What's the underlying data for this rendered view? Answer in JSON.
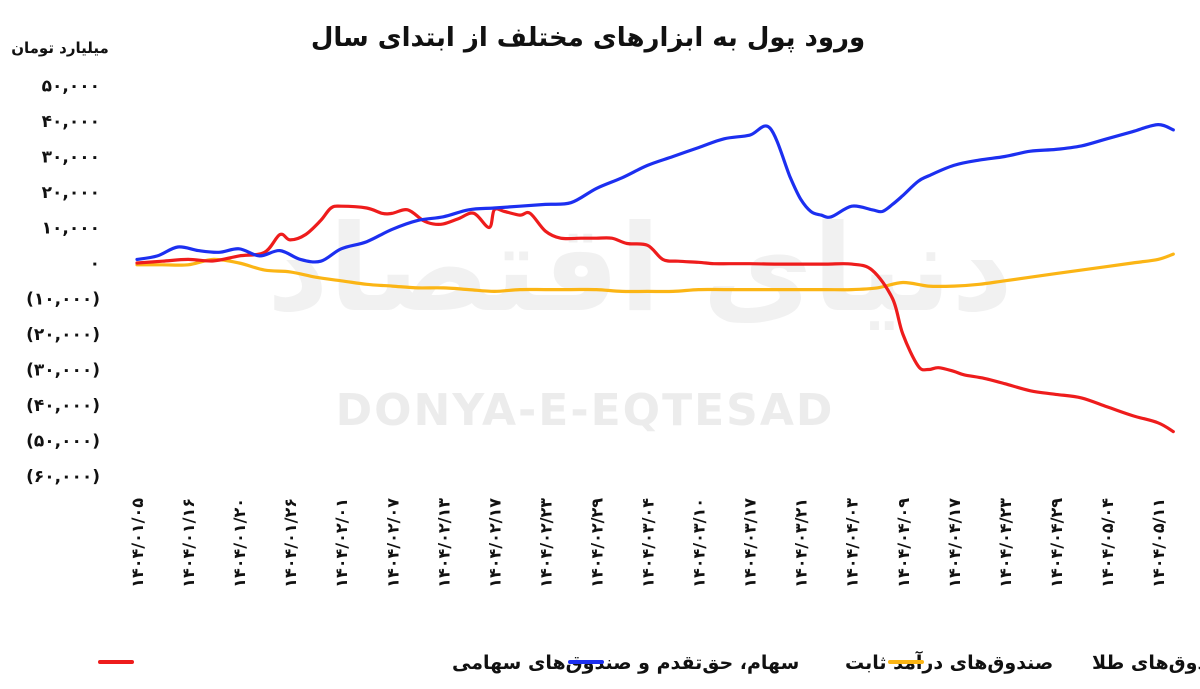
{
  "watermark": {
    "latin": "DONYA-E-EQTESAD",
    "farsi": "دنیای اقتصاد"
  },
  "chart_data": {
    "type": "line",
    "title": "ورود پول به ابزارهای مختلف از ابتدای سال",
    "ylabel": "میلیارد تومان",
    "ylim": [
      -60000,
      50000
    ],
    "yticks": [
      {
        "value": 50000,
        "label": "۵۰,۰۰۰"
      },
      {
        "value": 40000,
        "label": "۴۰,۰۰۰"
      },
      {
        "value": 30000,
        "label": "۳۰,۰۰۰"
      },
      {
        "value": 20000,
        "label": "۲۰,۰۰۰"
      },
      {
        "value": 10000,
        "label": "۱۰,۰۰۰"
      },
      {
        "value": 0,
        "label": "۰"
      },
      {
        "value": -10000,
        "label": "(۱۰,۰۰۰)"
      },
      {
        "value": -20000,
        "label": "(۲۰,۰۰۰)"
      },
      {
        "value": -30000,
        "label": "(۳۰,۰۰۰)"
      },
      {
        "value": -40000,
        "label": "(۴۰,۰۰۰)"
      },
      {
        "value": -50000,
        "label": "(۵۰,۰۰۰)"
      },
      {
        "value": -60000,
        "label": "(۶۰,۰۰۰)"
      }
    ],
    "categories": [
      "۱۴۰۴/۰۱/۰۵",
      "۱۴۰۴/۰۱/۱۶",
      "۱۴۰۴/۰۱/۲۰",
      "۱۴۰۴/۰۱/۲۶",
      "۱۴۰۴/۰۲/۰۱",
      "۱۴۰۴/۰۲/۰۷",
      "۱۴۰۴/۰۲/۱۳",
      "۱۴۰۴/۰۲/۱۷",
      "۱۴۰۴/۰۲/۲۳",
      "۱۴۰۴/۰۲/۲۹",
      "۱۴۰۴/۰۳/۰۴",
      "۱۴۰۴/۰۳/۱۰",
      "۱۴۰۴/۰۳/۱۷",
      "۱۴۰۴/۰۳/۲۱",
      "۱۴۰۴/۰۴/۰۳",
      "۱۴۰۴/۰۴/۰۹",
      "۱۴۰۴/۰۴/۱۷",
      "۱۴۰۴/۰۴/۲۳",
      "۱۴۰۴/۰۴/۲۹",
      "۱۴۰۴/۰۵/۰۴",
      "۱۴۰۴/۰۵/۱۱"
    ],
    "legend_position": "bottom",
    "grid": false,
    "series": [
      {
        "name": "سهام، حق‌تقدم و صندوق‌های سهامی",
        "color": "#ee1c1c",
        "x": [
          0,
          0.5,
          1,
          1.5,
          2,
          2.5,
          2.8,
          3,
          3.3,
          3.6,
          3.8,
          4,
          4.5,
          4.8,
          5,
          5.3,
          5.6,
          5.8,
          6,
          6.3,
          6.6,
          6.9,
          7,
          7.2,
          7.5,
          7.7,
          8,
          8.3,
          8.7,
          9,
          9.3,
          9.6,
          10,
          10.3,
          10.6,
          11,
          11.3,
          11.6,
          12,
          12.5,
          13,
          13.5,
          14,
          14.4,
          14.8,
          15,
          15.3,
          15.5,
          15.7,
          16,
          16.2,
          16.6,
          17,
          17.5,
          18,
          18.5,
          19,
          19.5,
          20,
          20.3
        ],
        "values": [
          0,
          500,
          1000,
          600,
          2000,
          3000,
          8000,
          6500,
          8000,
          12000,
          15500,
          16000,
          15500,
          14000,
          14000,
          15000,
          12000,
          11000,
          11000,
          12500,
          14000,
          10000,
          15000,
          14500,
          13500,
          14000,
          9000,
          7000,
          7000,
          7000,
          7000,
          5500,
          5000,
          1000,
          500,
          200,
          -200,
          -200,
          -200,
          -300,
          -300,
          -300,
          -300,
          -2000,
          -10000,
          -20000,
          -29000,
          -30000,
          -29500,
          -30500,
          -31500,
          -32500,
          -34000,
          -36000,
          -37000,
          -38000,
          -40500,
          -43000,
          -45000,
          -47500
        ]
      },
      {
        "name": "صندوق‌های درآمد ثابت",
        "color": "#1c2ff0",
        "x": [
          0,
          0.4,
          0.8,
          1.2,
          1.6,
          2,
          2.4,
          2.8,
          3.2,
          3.6,
          4,
          4.5,
          5,
          5.5,
          6,
          6.5,
          7,
          7.5,
          8,
          8.5,
          9,
          9.5,
          10,
          10.5,
          11,
          11.5,
          12,
          12.4,
          12.8,
          13,
          13.2,
          13.4,
          13.6,
          14,
          14.4,
          14.6,
          14.8,
          15,
          15.3,
          15.5,
          16,
          16.5,
          17,
          17.5,
          18,
          18.5,
          19,
          19.5,
          20,
          20.3
        ],
        "values": [
          1000,
          2000,
          4500,
          3500,
          3000,
          4000,
          2000,
          3500,
          1000,
          500,
          4000,
          6000,
          9500,
          12000,
          13000,
          15000,
          15500,
          16000,
          16500,
          17000,
          21000,
          24000,
          27500,
          30000,
          32500,
          35000,
          36000,
          38000,
          24000,
          18000,
          14500,
          13500,
          13000,
          16000,
          15000,
          14500,
          16500,
          19000,
          23000,
          24500,
          27500,
          29000,
          30000,
          31500,
          32000,
          33000,
          35000,
          37000,
          39000,
          37500
        ]
      },
      {
        "name": "صندوق‌های طلا",
        "color": "#fbb515",
        "x": [
          0,
          0.5,
          1,
          1.5,
          2,
          2.5,
          3,
          3.5,
          4,
          4.5,
          5,
          5.5,
          6,
          6.5,
          7,
          7.5,
          8,
          8.5,
          9,
          9.5,
          10,
          10.5,
          11,
          11.5,
          12,
          12.5,
          13,
          13.5,
          14,
          14.5,
          15,
          15.5,
          16,
          16.5,
          17,
          17.5,
          18,
          18.5,
          19,
          19.5,
          20,
          20.3
        ],
        "values": [
          -500,
          -500,
          -500,
          1000,
          0,
          -2000,
          -2500,
          -4000,
          -5000,
          -6000,
          -6500,
          -7000,
          -7000,
          -7500,
          -8000,
          -7500,
          -7500,
          -7500,
          -7500,
          -8000,
          -8000,
          -8000,
          -7500,
          -7500,
          -7500,
          -7500,
          -7500,
          -7500,
          -7500,
          -7000,
          -5500,
          -6500,
          -6500,
          -6000,
          -5000,
          -4000,
          -3000,
          -2000,
          -1000,
          0,
          1000,
          2500
        ]
      }
    ]
  }
}
